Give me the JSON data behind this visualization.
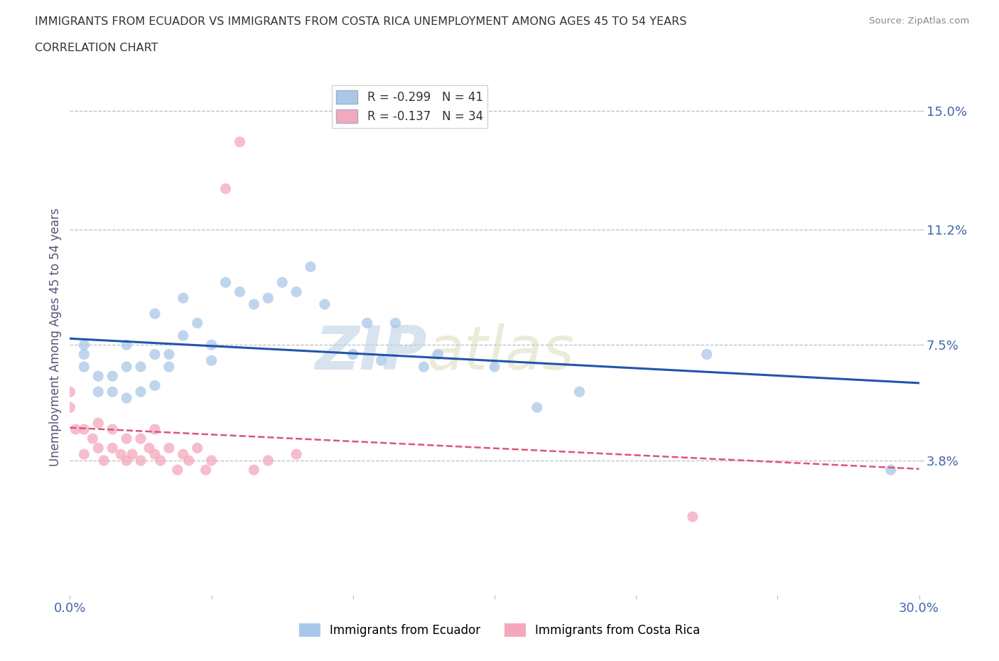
{
  "title_line1": "IMMIGRANTS FROM ECUADOR VS IMMIGRANTS FROM COSTA RICA UNEMPLOYMENT AMONG AGES 45 TO 54 YEARS",
  "title_line2": "CORRELATION CHART",
  "source": "Source: ZipAtlas.com",
  "ylabel": "Unemployment Among Ages 45 to 54 years",
  "xlim": [
    0.0,
    0.3
  ],
  "ylim": [
    -0.005,
    0.16
  ],
  "xticks": [
    0.0,
    0.05,
    0.1,
    0.15,
    0.2,
    0.25,
    0.3
  ],
  "xticklabels": [
    "0.0%",
    "",
    "",
    "",
    "",
    "",
    "30.0%"
  ],
  "ytick_positions": [
    0.038,
    0.075,
    0.112,
    0.15
  ],
  "ytick_labels": [
    "3.8%",
    "7.5%",
    "11.2%",
    "15.0%"
  ],
  "ecuador_color": "#a8c8e8",
  "costa_rica_color": "#f4a8bc",
  "ecuador_line_color": "#2255aa",
  "costa_rica_line_color": "#dd5577",
  "legend_ecuador": "R = -0.299   N = 41",
  "legend_costa_rica": "R = -0.137   N = 34",
  "legend_label_ecuador": "Immigrants from Ecuador",
  "legend_label_costa_rica": "Immigrants from Costa Rica",
  "watermark_zip": "ZIP",
  "watermark_atlas": "atlas",
  "ecuador_scatter_x": [
    0.005,
    0.005,
    0.005,
    0.01,
    0.01,
    0.015,
    0.015,
    0.02,
    0.02,
    0.02,
    0.025,
    0.025,
    0.03,
    0.03,
    0.03,
    0.035,
    0.035,
    0.04,
    0.04,
    0.045,
    0.05,
    0.05,
    0.055,
    0.06,
    0.065,
    0.07,
    0.075,
    0.08,
    0.085,
    0.09,
    0.1,
    0.105,
    0.11,
    0.115,
    0.125,
    0.13,
    0.15,
    0.165,
    0.18,
    0.225,
    0.29
  ],
  "ecuador_scatter_y": [
    0.068,
    0.072,
    0.075,
    0.06,
    0.065,
    0.065,
    0.06,
    0.058,
    0.068,
    0.075,
    0.06,
    0.068,
    0.062,
    0.072,
    0.085,
    0.068,
    0.072,
    0.078,
    0.09,
    0.082,
    0.07,
    0.075,
    0.095,
    0.092,
    0.088,
    0.09,
    0.095,
    0.092,
    0.1,
    0.088,
    0.072,
    0.082,
    0.07,
    0.082,
    0.068,
    0.072,
    0.068,
    0.055,
    0.06,
    0.072,
    0.035
  ],
  "costa_rica_scatter_x": [
    0.0,
    0.0,
    0.002,
    0.005,
    0.005,
    0.008,
    0.01,
    0.01,
    0.012,
    0.015,
    0.015,
    0.018,
    0.02,
    0.02,
    0.022,
    0.025,
    0.025,
    0.028,
    0.03,
    0.03,
    0.032,
    0.035,
    0.038,
    0.04,
    0.042,
    0.045,
    0.048,
    0.05,
    0.055,
    0.06,
    0.065,
    0.07,
    0.08,
    0.22
  ],
  "costa_rica_scatter_y": [
    0.055,
    0.06,
    0.048,
    0.04,
    0.048,
    0.045,
    0.042,
    0.05,
    0.038,
    0.042,
    0.048,
    0.04,
    0.038,
    0.045,
    0.04,
    0.038,
    0.045,
    0.042,
    0.04,
    0.048,
    0.038,
    0.042,
    0.035,
    0.04,
    0.038,
    0.042,
    0.035,
    0.038,
    0.125,
    0.14,
    0.035,
    0.038,
    0.04,
    0.02
  ],
  "background_color": "#ffffff",
  "grid_color": "#bbbbcc",
  "title_color": "#333333",
  "axis_label_color": "#555577",
  "tick_label_color": "#4466aa"
}
